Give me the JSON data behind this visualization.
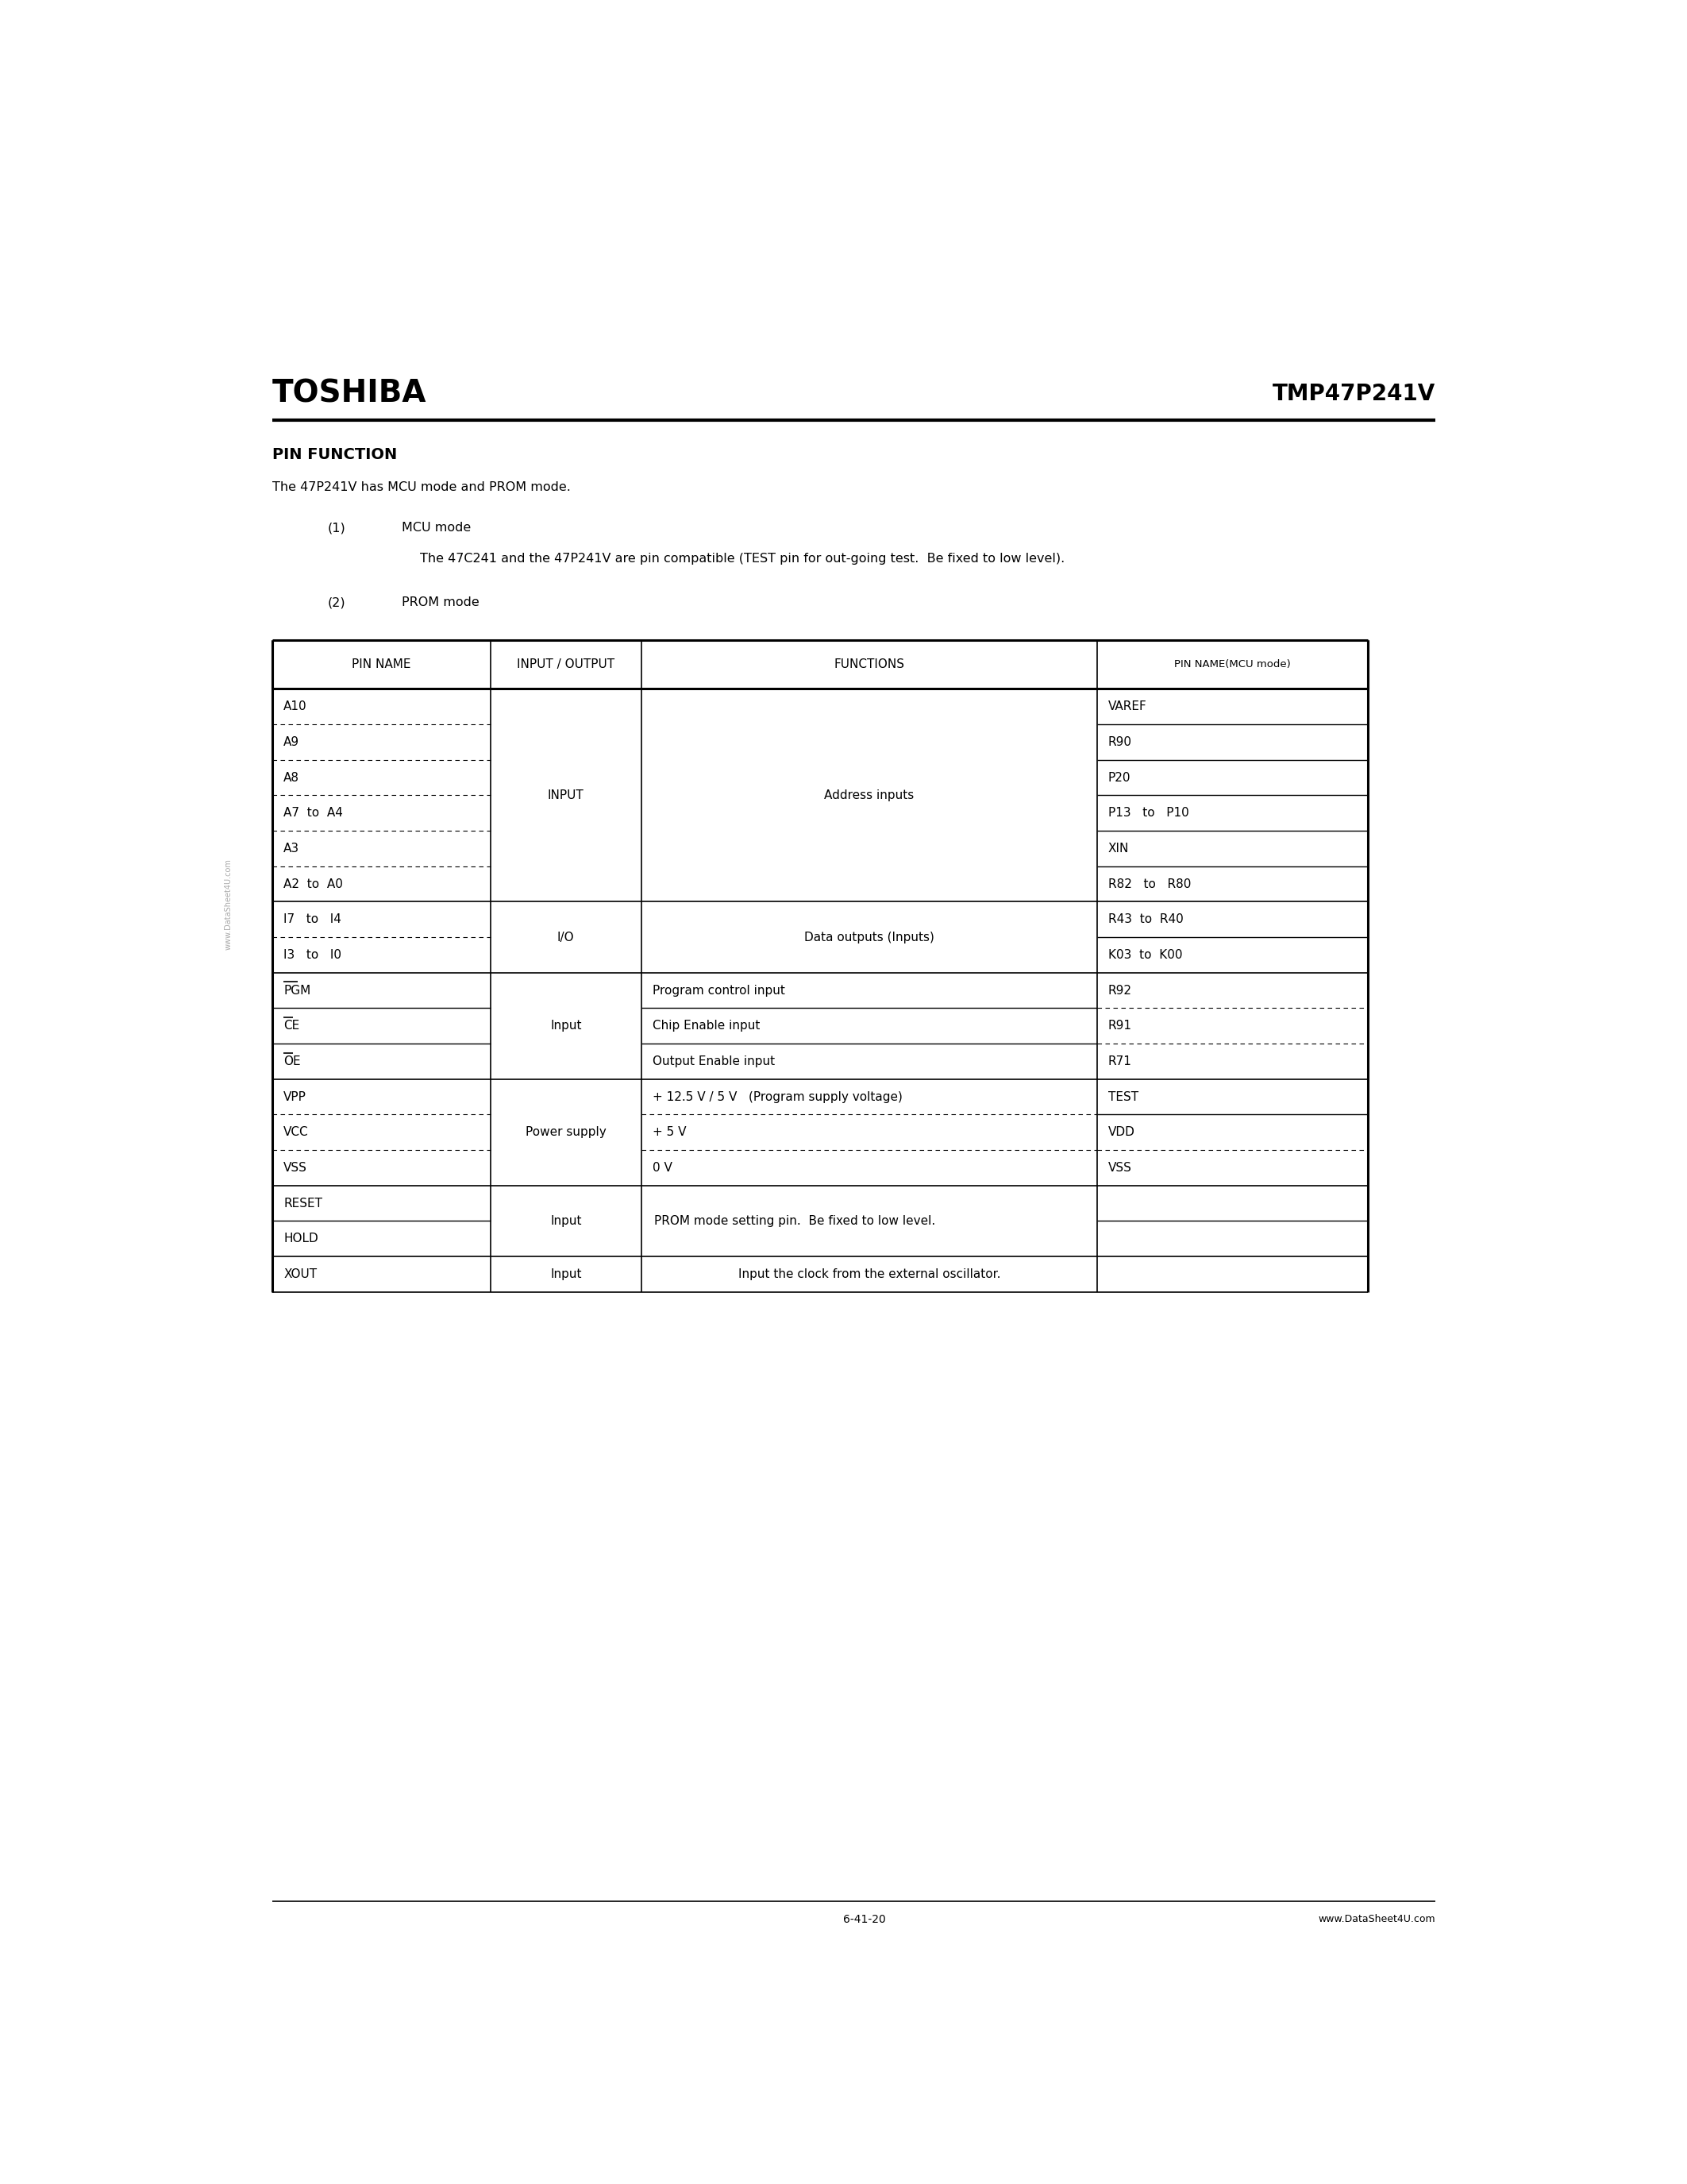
{
  "title_left": "TOSHIBA",
  "title_right": "TMP47P241V",
  "section_title": "PIN FUNCTION",
  "intro_line1": "The 47P241V has MCU mode and PROM mode.",
  "item1_num": "(1)",
  "item1_title": "MCU mode",
  "item1_desc": "The 47C241 and the 47P241V are pin compatible (TEST pin for out-going test.  Be fixed to low level).",
  "item2_num": "(2)",
  "item2_title": "PROM mode",
  "col_headers": [
    "PIN NAME",
    "INPUT / OUTPUT",
    "FUNCTIONS",
    "PIN NAME(MCU mode)"
  ],
  "watermark": "www.DataSheet4U.com",
  "footer_url": "www.DataSheet4U.com",
  "footer_page": "6-41-20",
  "bg_color": "#ffffff",
  "groups": [
    {
      "io": "INPUT",
      "func": "Address inputs",
      "func_shared": true,
      "subs": [
        {
          "pin": "A10",
          "mcu": "VAREF",
          "dp": true,
          "dm": false,
          "ol": false
        },
        {
          "pin": "A9",
          "mcu": "R90",
          "dp": true,
          "dm": false,
          "ol": false
        },
        {
          "pin": "A8",
          "mcu": "P20",
          "dp": true,
          "dm": false,
          "ol": false
        },
        {
          "pin": "A7  to  A4",
          "mcu": "P13   to   P10",
          "dp": true,
          "dm": false,
          "ol": false
        },
        {
          "pin": "A3",
          "mcu": "XIN",
          "dp": true,
          "dm": false,
          "ol": false
        },
        {
          "pin": "A2  to  A0",
          "mcu": "R82   to   R80",
          "dp": false,
          "dm": false,
          "ol": false
        }
      ]
    },
    {
      "io": "I/O",
      "func": "Data outputs (Inputs)",
      "func_shared": true,
      "subs": [
        {
          "pin": "I7   to   I4",
          "mcu": "R43  to  R40",
          "dp": true,
          "dm": false,
          "ol": false
        },
        {
          "pin": "I3   to   I0",
          "mcu": "K03  to  K00",
          "dp": false,
          "dm": false,
          "ol": false
        }
      ]
    },
    {
      "io": "Input",
      "func_shared": false,
      "subs": [
        {
          "pin": "PGM",
          "mcu": "R92",
          "func": "Program control input",
          "dp": false,
          "dm": true,
          "ol": true
        },
        {
          "pin": "CE",
          "mcu": "R91",
          "func": "Chip Enable input",
          "dp": false,
          "dm": true,
          "ol": true
        },
        {
          "pin": "OE",
          "mcu": "R71",
          "func": "Output Enable input",
          "dp": false,
          "dm": false,
          "ol": true
        }
      ]
    },
    {
      "io": "Power supply",
      "func_shared": false,
      "subs": [
        {
          "pin": "VPP",
          "mcu": "TEST",
          "func": "+ 12.5 V / 5 V   (Program supply voltage)",
          "dp": true,
          "dm": false,
          "ol": false
        },
        {
          "pin": "VCC",
          "mcu": "VDD",
          "func": "+ 5 V",
          "dp": true,
          "dm": true,
          "ol": false
        },
        {
          "pin": "VSS",
          "mcu": "VSS",
          "func": "0 V",
          "dp": false,
          "dm": false,
          "ol": false
        }
      ]
    },
    {
      "io": "Input",
      "func_shared": false,
      "func_merged": "PROM mode setting pin.  Be fixed to low level.",
      "subs": [
        {
          "pin": "RESET",
          "mcu": "",
          "func": "PROM mode setting pin.  Be fixed to low level.",
          "dp": false,
          "dm": false,
          "ol": false,
          "func_span": true
        },
        {
          "pin": "HOLD",
          "mcu": "",
          "func": "",
          "dp": false,
          "dm": false,
          "ol": false,
          "func_span": true
        }
      ]
    },
    {
      "io": "Input",
      "func": "Input the clock from the external oscillator.",
      "func_shared": true,
      "subs": [
        {
          "pin": "XOUT",
          "mcu": "",
          "dp": false,
          "dm": false,
          "ol": false
        }
      ]
    }
  ]
}
